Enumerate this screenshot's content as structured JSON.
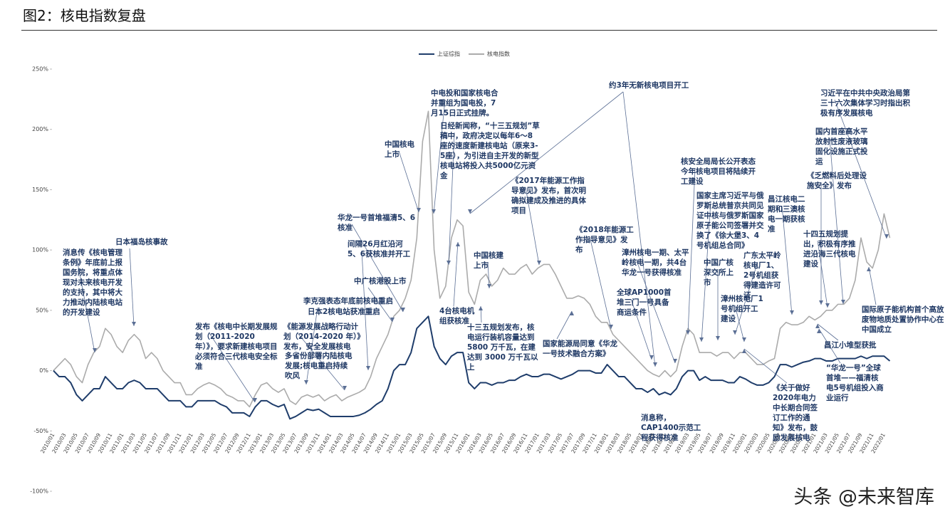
{
  "title": "图2：核电指数复盘",
  "watermark": "头条 @未来智库",
  "chart_data": {
    "type": "line",
    "x": [
      "2010/01",
      "2010/02",
      "2010/03",
      "2010/04",
      "2010/05",
      "2010/06",
      "2010/07",
      "2010/08",
      "2010/09",
      "2010/10",
      "2010/11",
      "2010/12",
      "2011/01",
      "2011/02",
      "2011/03",
      "2011/04",
      "2011/05",
      "2011/06",
      "2011/07",
      "2011/08",
      "2011/09",
      "2011/10",
      "2011/11",
      "2011/12",
      "2012/01",
      "2012/02",
      "2012/03",
      "2012/04",
      "2012/05",
      "2012/06",
      "2012/07",
      "2012/08",
      "2012/09",
      "2012/10",
      "2012/11",
      "2012/12",
      "2013/01",
      "2013/02",
      "2013/03",
      "2013/04",
      "2013/05",
      "2013/06",
      "2013/07",
      "2013/08",
      "2013/09",
      "2013/10",
      "2013/11",
      "2013/12",
      "2014/01",
      "2014/02",
      "2014/03",
      "2014/04",
      "2014/05",
      "2014/06",
      "2014/07",
      "2014/08",
      "2014/09",
      "2014/10",
      "2014/11",
      "2014/12",
      "2015/01",
      "2015/02",
      "2015/03",
      "2015/04",
      "2015/05",
      "2015/06",
      "2015/07",
      "2015/08",
      "2015/09",
      "2015/10",
      "2015/11",
      "2015/12",
      "2016/01",
      "2016/02",
      "2016/03",
      "2016/04",
      "2016/05",
      "2016/06",
      "2016/07",
      "2016/08",
      "2016/09",
      "2016/10",
      "2016/11",
      "2016/12",
      "2017/01",
      "2017/02",
      "2017/03",
      "2017/04",
      "2017/05",
      "2017/06",
      "2017/07",
      "2017/08",
      "2017/09",
      "2017/10",
      "2017/11",
      "2017/12",
      "2018/01",
      "2018/02",
      "2018/03",
      "2018/04",
      "2018/05",
      "2018/06",
      "2018/07",
      "2018/08",
      "2018/09",
      "2018/10",
      "2018/11",
      "2018/12",
      "2019/01",
      "2019/02",
      "2019/03",
      "2019/04",
      "2019/05",
      "2019/06",
      "2019/07",
      "2019/08",
      "2019/09",
      "2019/10",
      "2019/11",
      "2019/12",
      "2020/01",
      "2020/02",
      "2020/03",
      "2020/04",
      "2020/05",
      "2020/06",
      "2020/07",
      "2020/08",
      "2020/09",
      "2020/10",
      "2020/11",
      "2020/12",
      "2021/01",
      "2021/02",
      "2021/03",
      "2021/04",
      "2021/05",
      "2021/06",
      "2021/07",
      "2021/08",
      "2021/09",
      "2021/10",
      "2021/11",
      "2021/12",
      "2022/01",
      "2022/02"
    ],
    "series": [
      {
        "name": "上证综指",
        "color": "#1f3d6b",
        "values": [
          0,
          -5,
          -5,
          -10,
          -20,
          -25,
          -20,
          -15,
          -15,
          -5,
          -10,
          -15,
          -15,
          -10,
          -8,
          -10,
          -15,
          -15,
          -15,
          -20,
          -25,
          -25,
          -25,
          -30,
          -30,
          -25,
          -25,
          -25,
          -25,
          -28,
          -30,
          -35,
          -35,
          -35,
          -38,
          -30,
          -25,
          -25,
          -28,
          -30,
          -28,
          -40,
          -38,
          -35,
          -32,
          -33,
          -32,
          -35,
          -38,
          -38,
          -38,
          -38,
          -38,
          -37,
          -35,
          -32,
          -28,
          -25,
          -15,
          0,
          5,
          5,
          15,
          35,
          40,
          45,
          20,
          10,
          5,
          12,
          15,
          15,
          -10,
          -15,
          -10,
          -10,
          -12,
          -10,
          -10,
          -8,
          -8,
          -5,
          -3,
          -5,
          -5,
          -3,
          -3,
          -5,
          -7,
          -5,
          -3,
          0,
          0,
          0,
          -2,
          -2,
          5,
          0,
          -5,
          -5,
          -10,
          -15,
          -15,
          -18,
          -15,
          -20,
          -18,
          -20,
          -15,
          -5,
          0,
          0,
          -8,
          -5,
          -8,
          -8,
          -8,
          -10,
          -10,
          -5,
          -7,
          -10,
          -12,
          -12,
          -10,
          -5,
          5,
          5,
          3,
          5,
          7,
          8,
          10,
          10,
          8,
          8,
          10,
          10,
          10,
          10,
          12,
          10,
          12,
          12,
          12,
          8
        ]
      },
      {
        "name": "核电指数",
        "color": "#ababab",
        "values": [
          0,
          5,
          10,
          5,
          -5,
          -10,
          5,
          15,
          20,
          35,
          30,
          20,
          15,
          25,
          30,
          25,
          10,
          15,
          10,
          0,
          -5,
          -10,
          -10,
          -20,
          -20,
          -15,
          -12,
          -10,
          -12,
          -15,
          -20,
          -22,
          -25,
          -25,
          -30,
          -20,
          -12,
          -10,
          -15,
          -18,
          -15,
          -25,
          -28,
          -22,
          -20,
          -22,
          -20,
          -25,
          -22,
          -20,
          -25,
          -22,
          -20,
          -18,
          -15,
          -5,
          10,
          20,
          30,
          45,
          50,
          60,
          75,
          110,
          190,
          215,
          100,
          60,
          70,
          110,
          125,
          120,
          65,
          55,
          75,
          80,
          70,
          75,
          85,
          80,
          80,
          85,
          88,
          80,
          85,
          88,
          88,
          80,
          70,
          60,
          60,
          62,
          60,
          55,
          45,
          40,
          40,
          30,
          25,
          20,
          15,
          10,
          5,
          0,
          -3,
          -5,
          0,
          -5,
          0,
          20,
          35,
          30,
          15,
          15,
          15,
          12,
          15,
          15,
          10,
          15,
          15,
          10,
          5,
          5,
          8,
          10,
          35,
          40,
          38,
          38,
          40,
          45,
          42,
          45,
          50,
          50,
          55,
          55,
          60,
          75,
          110,
          90,
          85,
          100,
          130,
          110
        ]
      }
    ],
    "ylim": [
      -100,
      250
    ],
    "yticks": [
      {
        "value": -100,
        "label": "-100%"
      },
      {
        "value": -50,
        "label": "-50%"
      },
      {
        "value": 0,
        "label": "0%"
      },
      {
        "value": 50,
        "label": "50%"
      },
      {
        "value": 100,
        "label": "100%"
      },
      {
        "value": 150,
        "label": "150%"
      },
      {
        "value": 200,
        "label": "200%"
      },
      {
        "value": 250,
        "label": "250%"
      }
    ],
    "annotations": [
      "消息传《核电管理条例》年底前上报国务院，将重点体现对未来核电开发的支持，其中将大力推动内陆核电站的开发建设",
      "日本福岛核事故",
      "发布《核电中长期发展规划（2011-2020 年）》，要求新建核电项目必须符合三代核电安全标准",
      "李克强表态年底前核电重启",
      "日本2核电站获准重启",
      "《能源发展战略行动计划（2014-2020 年）》发布，安全发展核电",
      "多省份部署内陆核电发展;核电重启持续吹风",
      "间隔26月红沿河5、6获核准并开工",
      "中广核港股上市",
      "华龙一号首堆福清5、6核准",
      "中国核电上市",
      "中电投和国家核电合并重组为国电投，7月15日正式挂牌。",
      "日经新闻称，“十三五规划”草稿中，政府决定以每年6～8座的速度新建核电站（原来3-5座），为引进自主开发的新型核电站将投入共5000亿元资金",
      "4台核电机组获核准",
      "中国核建上市",
      "十三五规划发布，核电运行装机容量达到 5800 万千瓦，在建达到 3000 万千瓦以上",
      "《2017年能源工作指导意见》发布，首次明确拟建成及推进的具体项目",
      "约3年无新核电项目开工",
      "《2018年能源工作指导意见》发布",
      "国家能源局同意《华龙一号技术融合方案》",
      "全球AP1000首堆三门一号具备商运条件",
      "漳州核电一期、太平岭核电一期，共4台华龙一号获得核准",
      "消息称，CAP1400示范工程获得核准",
      "核安全局局长公开表态今年核电项目将陆续开工建设",
      "国家主席习近平与俄罗斯总统普京共同见证中核与俄罗斯国家原子能公司签署并交换了《徐大堡3、4号机组总合同》",
      "中国广核深交所上市",
      "广东太平岭核电厂1、2号机组获得建造许可证",
      "漳州核电厂1号机组开工建设",
      "《关于做好2020年电力中长期合同签订工作的通知》发布，鼓励发展核电",
      "昌江核电二期和三澳核电一期获核准",
      "十四五规划提出，积极有序推进沿海三代核电建设",
      "《乏燃料后处理设施安全》发布",
      "国内首座高水平放射性废液玻璃固化设施正式投运",
      "习近平在中共中央政治局第三十六次集体学习时指出积极有序发展核电",
      "昌江小堆型获批",
      "“华龙一号”全球首堆——福清核电5号机组投入商业运行",
      "国际原子能机构首个高放废物地质处置协作中心在中国成立"
    ]
  }
}
